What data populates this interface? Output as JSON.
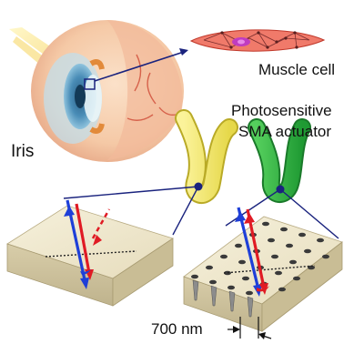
{
  "labels": {
    "iris": "Iris",
    "muscle_cell": "Muscle cell",
    "actuator_line1": "Photosensitive",
    "actuator_line2": "SMA actuator",
    "scale": "700 nm"
  },
  "colors": {
    "yellow_actuator": "#f3ea6a",
    "green_actuator": "#2fb344",
    "incident_ray": "#e01b24",
    "reflected_ray": "#1e3fd8",
    "muscle_cell": "#f07a6a",
    "nucleus": "#c03cc0",
    "surface_top": "#f0ead2",
    "surface_side": "#cfc4a0"
  }
}
